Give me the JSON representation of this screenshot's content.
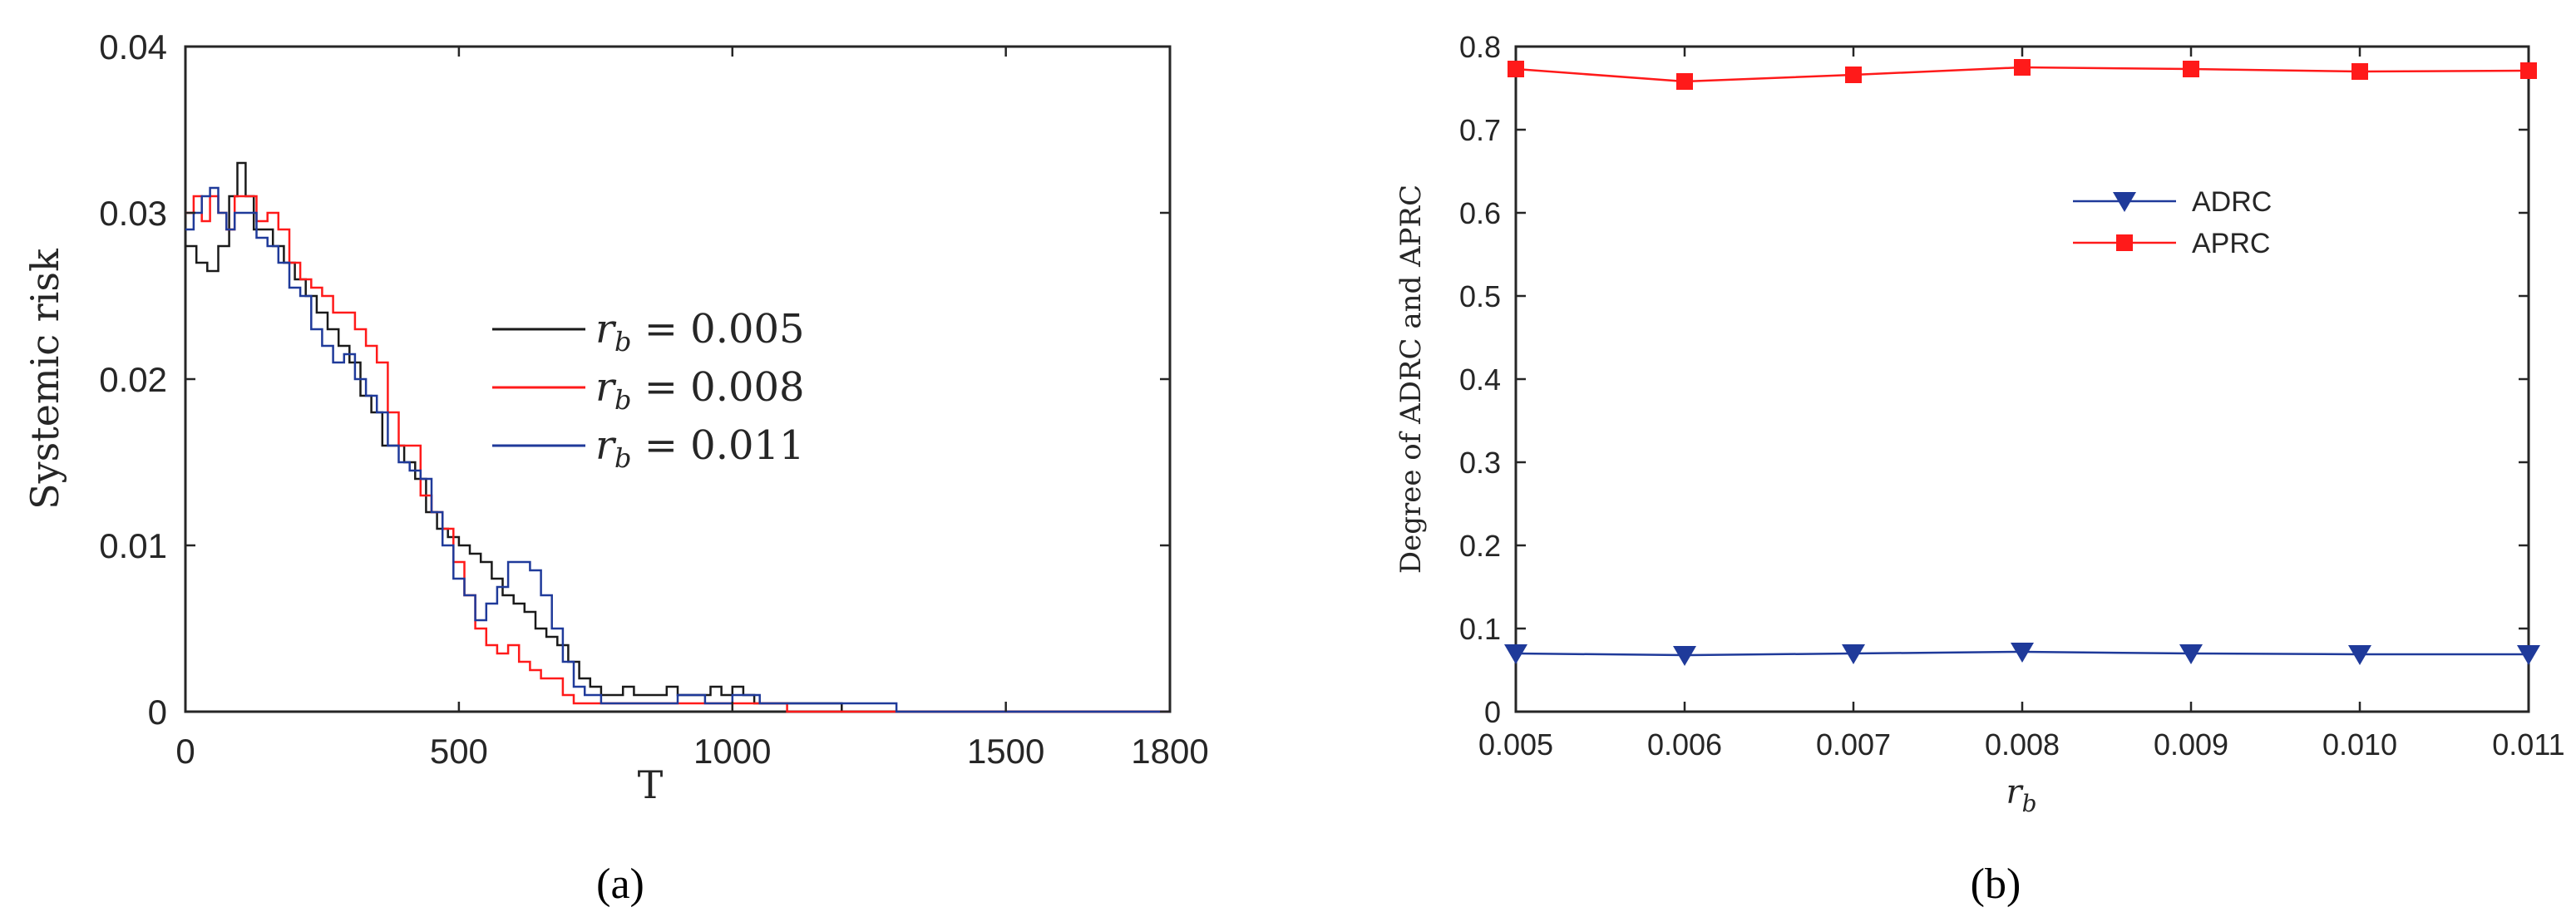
{
  "captions": {
    "a": "(a)",
    "b": "(b)"
  },
  "colors": {
    "black": "#1a1a1a",
    "red": "#ff1a1a",
    "blue": "#1f3a9a",
    "axis": "#262626"
  },
  "chart_data": [
    {
      "type": "line",
      "xlabel": "T",
      "ylabel": "Systemic risk",
      "xlim": [
        0,
        1800
      ],
      "ylim": [
        0,
        0.04
      ],
      "x_ticks": [
        0,
        500,
        1000,
        1500,
        1800
      ],
      "x_tick_labels": [
        "0",
        "500",
        "1000",
        "1500",
        "1800"
      ],
      "y_ticks": [
        0,
        0.01,
        0.02,
        0.03,
        0.04
      ],
      "y_tick_labels": [
        "0",
        "0.01",
        "0.02",
        "0.03",
        "0.04"
      ],
      "grid": false,
      "legend_position": "middle-right",
      "series": [
        {
          "name": "r_b = 0.005",
          "legend_label": {
            "var": "r",
            "sub": "b",
            "rest": " = 0.005"
          },
          "color": "black",
          "x": [
            0,
            20,
            40,
            60,
            80,
            95,
            110,
            125,
            140,
            160,
            180,
            200,
            220,
            240,
            260,
            280,
            300,
            320,
            340,
            360,
            380,
            400,
            420,
            440,
            460,
            480,
            500,
            520,
            540,
            560,
            580,
            600,
            620,
            640,
            660,
            680,
            700,
            720,
            740,
            760,
            780,
            800,
            820,
            840,
            860,
            880,
            900,
            920,
            940,
            960,
            980,
            1000,
            1020,
            1040,
            1100,
            1200,
            1300,
            1400,
            1500,
            1600,
            1700,
            1800
          ],
          "y": [
            0.028,
            0.027,
            0.0265,
            0.028,
            0.031,
            0.033,
            0.031,
            0.029,
            0.029,
            0.028,
            0.027,
            0.026,
            0.025,
            0.024,
            0.023,
            0.022,
            0.021,
            0.019,
            0.018,
            0.016,
            0.016,
            0.015,
            0.014,
            0.012,
            0.011,
            0.0105,
            0.01,
            0.0095,
            0.009,
            0.008,
            0.007,
            0.0065,
            0.006,
            0.005,
            0.0045,
            0.004,
            0.003,
            0.002,
            0.0015,
            0.001,
            0.001,
            0.0015,
            0.001,
            0.001,
            0.001,
            0.0015,
            0.001,
            0.001,
            0.001,
            0.0015,
            0.001,
            0.0015,
            0.001,
            0.0005,
            0.0005,
            0,
            0,
            0,
            0,
            0,
            0,
            0
          ]
        },
        {
          "name": "r_b = 0.008",
          "legend_label": {
            "var": "r",
            "sub": "b",
            "rest": " = 0.008"
          },
          "color": "red",
          "x": [
            0,
            15,
            30,
            45,
            60,
            75,
            90,
            110,
            130,
            150,
            170,
            190,
            210,
            230,
            250,
            270,
            290,
            310,
            330,
            350,
            370,
            390,
            410,
            430,
            450,
            470,
            490,
            510,
            530,
            550,
            570,
            590,
            610,
            630,
            650,
            670,
            690,
            710,
            730,
            760,
            800,
            850,
            900,
            950,
            1000,
            1050,
            1100,
            1200,
            1300,
            1400,
            1500,
            1600,
            1700,
            1800
          ],
          "y": [
            0.03,
            0.031,
            0.0295,
            0.031,
            0.03,
            0.029,
            0.031,
            0.031,
            0.0295,
            0.03,
            0.029,
            0.027,
            0.026,
            0.0255,
            0.025,
            0.024,
            0.024,
            0.023,
            0.022,
            0.021,
            0.018,
            0.016,
            0.016,
            0.013,
            0.012,
            0.011,
            0.009,
            0.007,
            0.005,
            0.004,
            0.0035,
            0.004,
            0.003,
            0.0025,
            0.002,
            0.002,
            0.001,
            0.0005,
            0.0005,
            0.0005,
            0.0005,
            0.0005,
            0.0005,
            0.0005,
            0.0005,
            0.0005,
            0,
            0,
            0,
            0,
            0,
            0,
            0,
            0
          ]
        },
        {
          "name": "r_b = 0.011",
          "legend_label": {
            "var": "r",
            "sub": "b",
            "rest": " = 0.011"
          },
          "color": "blue",
          "x": [
            0,
            15,
            30,
            45,
            60,
            75,
            90,
            110,
            130,
            150,
            170,
            190,
            210,
            230,
            250,
            270,
            290,
            310,
            330,
            350,
            370,
            390,
            410,
            430,
            450,
            470,
            490,
            510,
            530,
            550,
            570,
            590,
            610,
            630,
            650,
            670,
            690,
            710,
            730,
            760,
            800,
            850,
            900,
            950,
            1000,
            1050,
            1100,
            1150,
            1200,
            1280,
            1300,
            1400,
            1500,
            1600,
            1700,
            1800
          ],
          "y": [
            0.029,
            0.03,
            0.031,
            0.0315,
            0.03,
            0.029,
            0.03,
            0.03,
            0.0285,
            0.028,
            0.027,
            0.0255,
            0.025,
            0.023,
            0.022,
            0.021,
            0.0215,
            0.02,
            0.019,
            0.018,
            0.016,
            0.015,
            0.0145,
            0.014,
            0.012,
            0.01,
            0.008,
            0.007,
            0.0055,
            0.0065,
            0.0075,
            0.009,
            0.009,
            0.0085,
            0.007,
            0.005,
            0.003,
            0.0015,
            0.001,
            0.0005,
            0.0005,
            0.0005,
            0.001,
            0.0005,
            0.001,
            0.0005,
            0.0005,
            0.0005,
            0.0005,
            0.0005,
            0,
            0,
            0,
            0,
            0,
            0
          ]
        }
      ]
    },
    {
      "type": "line",
      "xlabel": {
        "var": "r",
        "sub": "b"
      },
      "ylabel": "Degree of ADRC and APRC",
      "categories": [
        "0.005",
        "0.006",
        "0.007",
        "0.008",
        "0.009",
        "0.010",
        "0.011"
      ],
      "x": [
        0.005,
        0.006,
        0.007,
        0.008,
        0.009,
        0.01,
        0.011
      ],
      "xlim": [
        0.005,
        0.011
      ],
      "ylim": [
        0,
        0.8
      ],
      "y_ticks": [
        0,
        0.1,
        0.2,
        0.3,
        0.4,
        0.5,
        0.6,
        0.7,
        0.8
      ],
      "y_tick_labels": [
        "0",
        "0.1",
        "0.2",
        "0.3",
        "0.4",
        "0.5",
        "0.6",
        "0.7",
        "0.8"
      ],
      "grid": false,
      "legend_position": "upper-middle-right",
      "series": [
        {
          "name": "ADRC",
          "color": "blue",
          "marker": "triangle-down",
          "values": [
            0.07,
            0.068,
            0.07,
            0.072,
            0.07,
            0.069,
            0.069
          ]
        },
        {
          "name": "APRC",
          "color": "red",
          "marker": "square",
          "values": [
            0.773,
            0.758,
            0.766,
            0.775,
            0.773,
            0.77,
            0.771
          ]
        }
      ]
    }
  ]
}
